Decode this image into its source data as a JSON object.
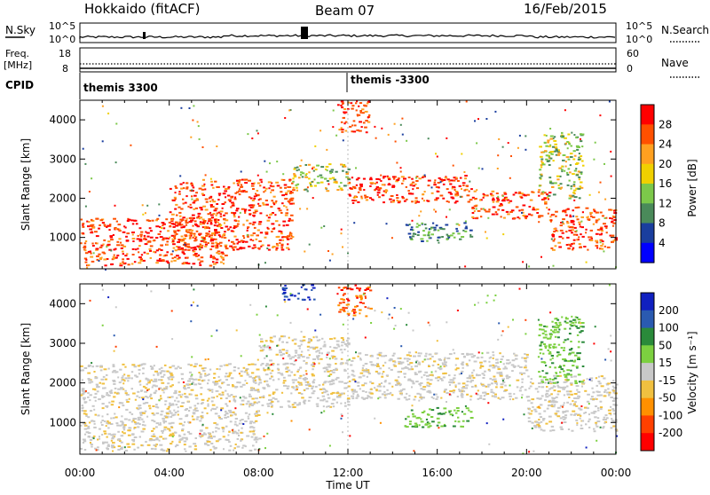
{
  "header": {
    "station": "Hokkaido (fitACF)",
    "beam": "Beam 07",
    "date": "16/Feb/2015"
  },
  "top_strip": {
    "nsky_label": "N.Sky",
    "nsky_ticks": [
      "10^5",
      "10^0"
    ],
    "nsearch_label": "N.Search",
    "nsearch_ticks": [
      "10^5",
      "10^0"
    ],
    "freq_label_1": "Freq.",
    "freq_label_2": "[MHz]",
    "freq_ticks": [
      "18",
      "8"
    ],
    "nave_label": "Nave",
    "nave_ticks": [
      "60",
      "0"
    ],
    "cpid_label": "CPID",
    "cpid_segments": [
      {
        "label": "themis 3300",
        "start_hour": 0
      },
      {
        "label": "themis -3300",
        "start_hour": 12
      }
    ]
  },
  "x_axis": {
    "label": "Time UT",
    "ticks": [
      "00:00",
      "04:00",
      "08:00",
      "12:00",
      "16:00",
      "20:00",
      "00:00"
    ]
  },
  "chart_data": [
    {
      "type": "heatmap",
      "panel": "power",
      "ylabel": "Slant Range [km]",
      "yticks": [
        "1000",
        "2000",
        "3000",
        "4000"
      ],
      "ylim": [
        200,
        4500
      ],
      "xlim_hours": [
        0,
        24
      ],
      "colorbar": {
        "title": "Power [dB]",
        "ticks": [
          "4",
          "8",
          "12",
          "16",
          "20",
          "24",
          "28"
        ],
        "colors": [
          "#0000ff",
          "#1a3e9e",
          "#4a8a5a",
          "#7cc84a",
          "#f0d000",
          "#ffa020",
          "#ff5000",
          "#ff0000"
        ]
      },
      "bands": [
        {
          "hour_start": 0.0,
          "hour_end": 6.5,
          "range_start": 300,
          "range_end": 1500,
          "level": "high"
        },
        {
          "hour_start": 4.0,
          "hour_end": 9.5,
          "range_start": 700,
          "range_end": 2500,
          "level": "high"
        },
        {
          "hour_start": 9.5,
          "hour_end": 12.0,
          "range_start": 2200,
          "range_end": 2900,
          "level": "mid"
        },
        {
          "hour_start": 12.0,
          "hour_end": 17.5,
          "range_start": 1900,
          "range_end": 2600,
          "level": "high"
        },
        {
          "hour_start": 17.5,
          "hour_end": 21.0,
          "range_start": 1500,
          "range_end": 2200,
          "level": "high"
        },
        {
          "hour_start": 21.0,
          "hour_end": 24.0,
          "range_start": 700,
          "range_end": 1800,
          "level": "high"
        },
        {
          "hour_start": 11.5,
          "hour_end": 13.0,
          "range_start": 3700,
          "range_end": 4500,
          "level": "high"
        },
        {
          "hour_start": 14.5,
          "hour_end": 17.5,
          "range_start": 900,
          "range_end": 1400,
          "level": "low"
        },
        {
          "hour_start": 20.5,
          "hour_end": 22.5,
          "range_start": 2000,
          "range_end": 3700,
          "level": "mid"
        }
      ]
    },
    {
      "type": "heatmap",
      "panel": "velocity",
      "ylabel": "Slant Range [km]",
      "yticks": [
        "1000",
        "2000",
        "3000",
        "4000"
      ],
      "ylim": [
        200,
        4500
      ],
      "xlim_hours": [
        0,
        24
      ],
      "colorbar": {
        "title": "Velocity [m s⁻¹]",
        "ticks": [
          "200",
          "100",
          "50",
          "15",
          "-15",
          "-50",
          "-100",
          "-200"
        ],
        "colors": [
          "#1020c0",
          "#2a5ab0",
          "#2a8a3a",
          "#7cd040",
          "#c8c8c8",
          "#f0c040",
          "#ff9000",
          "#ff4000",
          "#ff0000"
        ]
      },
      "bands": [
        {
          "hour_start": 0.0,
          "hour_end": 8.0,
          "range_start": 300,
          "range_end": 2500,
          "level": "grey"
        },
        {
          "hour_start": 8.0,
          "hour_end": 12.0,
          "range_start": 1400,
          "range_end": 3200,
          "level": "grey"
        },
        {
          "hour_start": 12.0,
          "hour_end": 20.0,
          "range_start": 1600,
          "range_end": 2800,
          "level": "grey"
        },
        {
          "hour_start": 20.0,
          "hour_end": 24.0,
          "range_start": 800,
          "range_end": 2200,
          "level": "grey"
        },
        {
          "hour_start": 11.5,
          "hour_end": 13.0,
          "range_start": 3700,
          "range_end": 4500,
          "level": "orange"
        },
        {
          "hour_start": 9.0,
          "hour_end": 10.5,
          "range_start": 4100,
          "range_end": 4500,
          "level": "blue"
        },
        {
          "hour_start": 14.5,
          "hour_end": 17.5,
          "range_start": 900,
          "range_end": 1400,
          "level": "green"
        },
        {
          "hour_start": 20.5,
          "hour_end": 22.5,
          "range_start": 2000,
          "range_end": 3700,
          "level": "green"
        }
      ]
    }
  ]
}
